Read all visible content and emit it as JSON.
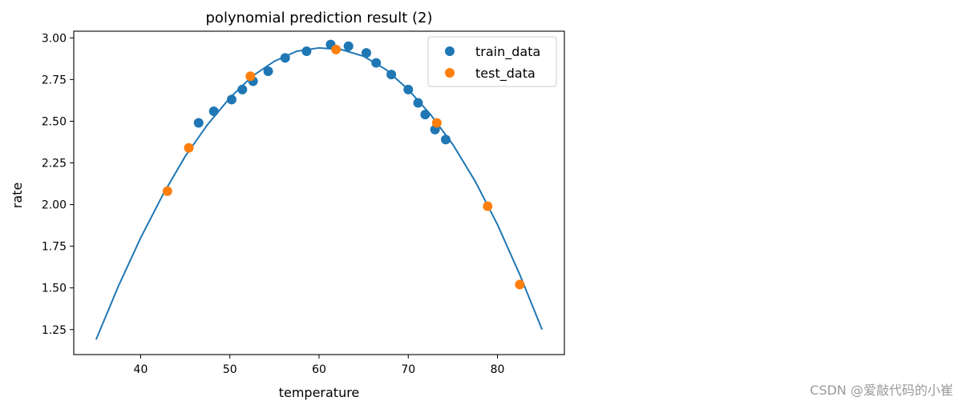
{
  "chart_data": {
    "type": "scatter",
    "title": "polynomial prediction result (2)",
    "xlabel": "temperature",
    "ylabel": "rate",
    "xlim": [
      32.5,
      87.5
    ],
    "ylim": [
      1.1,
      3.04
    ],
    "xticks": [
      40,
      50,
      60,
      70,
      80
    ],
    "yticks": [
      1.25,
      1.5,
      1.75,
      2.0,
      2.25,
      2.5,
      2.75,
      3.0
    ],
    "xtick_labels": [
      "40",
      "50",
      "60",
      "70",
      "80"
    ],
    "ytick_labels": [
      "1.25",
      "1.50",
      "1.75",
      "2.00",
      "2.25",
      "2.50",
      "2.75",
      "3.00"
    ],
    "legend_position": "top-right",
    "grid": false,
    "series": [
      {
        "name": "train_data",
        "kind": "scatter",
        "color": "#1f77b4",
        "points": [
          {
            "x": 46.5,
            "y": 2.49
          },
          {
            "x": 48.2,
            "y": 2.56
          },
          {
            "x": 50.2,
            "y": 2.63
          },
          {
            "x": 51.4,
            "y": 2.69
          },
          {
            "x": 52.6,
            "y": 2.74
          },
          {
            "x": 54.3,
            "y": 2.8
          },
          {
            "x": 56.2,
            "y": 2.88
          },
          {
            "x": 58.6,
            "y": 2.92
          },
          {
            "x": 61.3,
            "y": 2.96
          },
          {
            "x": 63.3,
            "y": 2.95
          },
          {
            "x": 65.3,
            "y": 2.91
          },
          {
            "x": 66.4,
            "y": 2.85
          },
          {
            "x": 68.1,
            "y": 2.78
          },
          {
            "x": 70.0,
            "y": 2.69
          },
          {
            "x": 71.1,
            "y": 2.61
          },
          {
            "x": 71.9,
            "y": 2.54
          },
          {
            "x": 73.0,
            "y": 2.45
          },
          {
            "x": 74.2,
            "y": 2.39
          }
        ]
      },
      {
        "name": "test_data",
        "kind": "scatter",
        "color": "#ff7f0e",
        "points": [
          {
            "x": 43.0,
            "y": 2.08
          },
          {
            "x": 45.4,
            "y": 2.34
          },
          {
            "x": 52.3,
            "y": 2.77
          },
          {
            "x": 61.9,
            "y": 2.93
          },
          {
            "x": 73.2,
            "y": 2.49
          },
          {
            "x": 78.9,
            "y": 1.99
          },
          {
            "x": 82.5,
            "y": 1.52
          }
        ]
      },
      {
        "name": "",
        "kind": "line",
        "color": "#1f77b4",
        "points": [
          {
            "x": 35,
            "y": 1.19
          },
          {
            "x": 37.5,
            "y": 1.51
          },
          {
            "x": 40,
            "y": 1.8
          },
          {
            "x": 42.5,
            "y": 2.06
          },
          {
            "x": 45,
            "y": 2.29
          },
          {
            "x": 47.5,
            "y": 2.48
          },
          {
            "x": 50,
            "y": 2.64
          },
          {
            "x": 52.5,
            "y": 2.77
          },
          {
            "x": 55,
            "y": 2.86
          },
          {
            "x": 57.5,
            "y": 2.92
          },
          {
            "x": 60,
            "y": 2.94
          },
          {
            "x": 62.5,
            "y": 2.93
          },
          {
            "x": 65,
            "y": 2.89
          },
          {
            "x": 67.5,
            "y": 2.81
          },
          {
            "x": 70,
            "y": 2.69
          },
          {
            "x": 72.5,
            "y": 2.54
          },
          {
            "x": 75,
            "y": 2.36
          },
          {
            "x": 77.5,
            "y": 2.14
          },
          {
            "x": 80,
            "y": 1.88
          },
          {
            "x": 82.5,
            "y": 1.58
          },
          {
            "x": 85,
            "y": 1.25
          }
        ]
      }
    ]
  },
  "watermark": "CSDN @爱敲代码的小崔"
}
